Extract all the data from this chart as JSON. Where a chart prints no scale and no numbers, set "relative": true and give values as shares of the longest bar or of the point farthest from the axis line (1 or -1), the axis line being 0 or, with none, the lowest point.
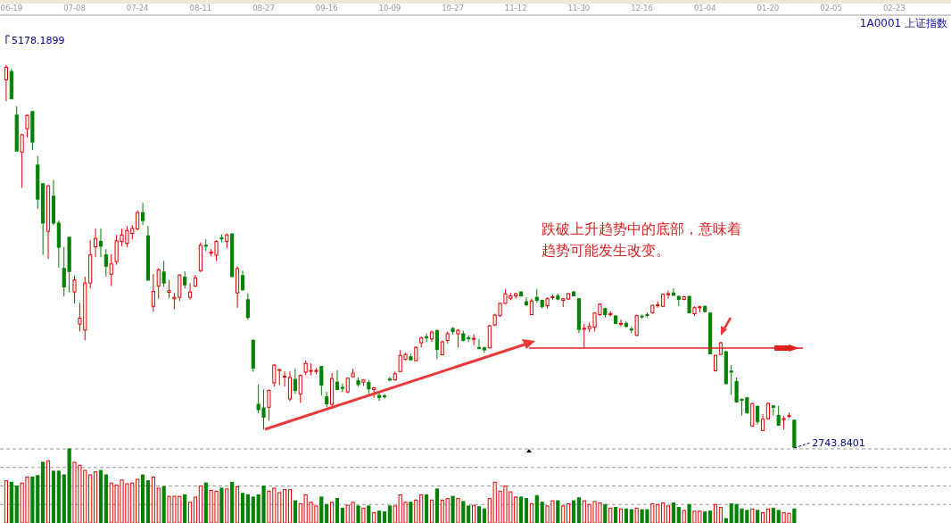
{
  "chart_data": [
    {
      "type": "candlestick",
      "title": "1A0001 上证指数",
      "categories": [
        null,
        "06-19",
        null,
        null,
        null,
        null,
        null,
        null,
        null,
        null,
        null,
        null,
        null,
        "07-08",
        null,
        null,
        null,
        null,
        null,
        null,
        null,
        null,
        null,
        null,
        null,
        "07-24",
        null,
        null,
        null,
        null,
        null,
        null,
        null,
        null,
        null,
        null,
        null,
        "08-11",
        null,
        null,
        null,
        null,
        null,
        null,
        null,
        null,
        null,
        null,
        null,
        "08-27",
        null,
        null,
        null,
        null,
        null,
        null,
        null,
        null,
        null,
        null,
        null,
        "09-16",
        null,
        null,
        null,
        null,
        null,
        null,
        null,
        null,
        null,
        null,
        null,
        "10-09",
        null,
        null,
        null,
        null,
        null,
        null,
        null,
        null,
        null,
        null,
        null,
        "10-27",
        null,
        null,
        null,
        null,
        null,
        null,
        null,
        null,
        null,
        null,
        null,
        "11-12",
        null,
        null,
        null,
        null,
        null,
        null,
        null,
        null,
        null,
        null,
        null,
        "11-30",
        null,
        null,
        null,
        null,
        null,
        null,
        null,
        null,
        null,
        null,
        null,
        "12-16",
        null,
        null,
        null,
        null,
        null,
        null,
        null,
        null,
        null,
        null,
        null,
        "01-04",
        null,
        null,
        null,
        null,
        null,
        null,
        null,
        null,
        null,
        null,
        null,
        "01-20",
        null,
        null,
        null,
        null,
        null,
        null,
        null,
        null,
        null,
        null,
        null,
        "02-05",
        null,
        null,
        null,
        null,
        null,
        null,
        null,
        null,
        null,
        null,
        null,
        "02-23",
        null,
        null,
        null,
        null,
        null,
        null,
        null,
        null,
        null,
        null,
        null
      ],
      "ohlc": [
        [
          5085,
          5178.1899,
          4949,
          5165
        ],
        [
          5138,
          5154,
          4965,
          4965
        ],
        [
          4861,
          4917,
          4632,
          4632
        ],
        [
          4626,
          4742,
          4398,
          4736
        ],
        [
          4774,
          4864,
          4719,
          4859
        ],
        [
          4883,
          4889,
          4638,
          4689
        ],
        [
          4543,
          4600,
          4265,
          4326
        ],
        [
          4424,
          4430,
          3972,
          4174
        ],
        [
          4122,
          4416,
          3948,
          4411
        ],
        [
          4345,
          4449,
          4161,
          4174
        ],
        [
          4174,
          4190,
          3891,
          4020
        ],
        [
          3885,
          4023,
          3708,
          3768
        ],
        [
          4084,
          4084,
          3734,
          3866
        ],
        [
          3736,
          3840,
          3664,
          3812
        ],
        [
          3532,
          3668,
          3485,
          3570
        ],
        [
          3494,
          3834,
          3428,
          3793
        ],
        [
          3793,
          4065,
          3759,
          3972
        ],
        [
          4023,
          4140,
          3957,
          4076
        ],
        [
          4057,
          4140,
          3957,
          4027
        ],
        [
          3972,
          4008,
          3834,
          3900
        ],
        [
          3849,
          3976,
          3774,
          3914
        ],
        [
          3929,
          4099,
          3910,
          4061
        ],
        [
          4057,
          4137,
          4027,
          4099
        ],
        [
          4046,
          4156,
          4020,
          4127
        ],
        [
          4108,
          4161,
          4071,
          4140
        ],
        [
          4137,
          4254,
          4127,
          4241
        ],
        [
          4241,
          4303,
          4161,
          4190
        ],
        [
          4093,
          4156,
          3806,
          3812
        ],
        [
          3645,
          3849,
          3611,
          3740
        ],
        [
          3774,
          3885,
          3693,
          3878
        ],
        [
          3863,
          3934,
          3768,
          3793
        ],
        [
          3734,
          3812,
          3698,
          3744
        ],
        [
          3693,
          3730,
          3626,
          3702
        ],
        [
          3702,
          3849,
          3679,
          3844
        ],
        [
          3831,
          3868,
          3759,
          3781
        ],
        [
          3702,
          3793,
          3687,
          3736
        ],
        [
          3774,
          3844,
          3768,
          3825
        ],
        [
          3872,
          4052,
          3863,
          4033
        ],
        [
          4033,
          4071,
          3995,
          4027
        ],
        [
          3986,
          4008,
          3963,
          3989
        ],
        [
          3970,
          4065,
          3933,
          4057
        ],
        [
          4080,
          4103,
          4052,
          4076
        ],
        [
          4057,
          4108,
          4014,
          4099
        ],
        [
          4105,
          4108,
          3831,
          3834
        ],
        [
          3730,
          3900,
          3636,
          3885
        ],
        [
          3840,
          3872,
          3744,
          3749
        ],
        [
          3687,
          3727,
          3560,
          3574
        ],
        [
          3428,
          3437,
          3229,
          3252
        ],
        [
          3022,
          3148,
          2965,
          2988
        ],
        [
          2999,
          3116,
          2861,
          2940
        ],
        [
          3003,
          3116,
          2918,
          3110
        ],
        [
          3158,
          3277,
          3135,
          3271
        ],
        [
          3239,
          3243,
          3144,
          3243
        ],
        [
          3197,
          3230,
          3135,
          3201
        ],
        [
          3056,
          3230,
          3041,
          3192
        ],
        [
          3180,
          3248,
          3088,
          3110
        ],
        [
          3088,
          3211,
          3031,
          3205
        ],
        [
          3226,
          3301,
          3207,
          3282
        ],
        [
          3233,
          3282,
          3207,
          3237
        ],
        [
          3231,
          3252,
          3214,
          3237
        ],
        [
          3262,
          3262,
          3078,
          3144
        ],
        [
          3069,
          3101,
          3003,
          3025
        ],
        [
          3022,
          3220,
          3003,
          3186
        ],
        [
          3163,
          3239,
          3112,
          3116
        ],
        [
          3129,
          3154,
          3101,
          3126
        ],
        [
          3101,
          3192,
          3092,
          3188
        ],
        [
          3197,
          3248,
          3192,
          3220
        ],
        [
          3173,
          3192,
          3135,
          3148
        ],
        [
          3163,
          3182,
          3139,
          3177
        ],
        [
          3160,
          3177,
          3088,
          3120
        ],
        [
          3116,
          3131,
          3063,
          3127
        ],
        [
          3078,
          3092,
          3044,
          3065
        ],
        [
          3075,
          3088,
          3059,
          3073
        ],
        [
          3182,
          3196,
          3167,
          3178
        ],
        [
          3177,
          3230,
          3173,
          3216
        ],
        [
          3230,
          3366,
          3226,
          3333
        ],
        [
          3309,
          3349,
          3301,
          3339
        ],
        [
          3324,
          3343,
          3301,
          3305
        ],
        [
          3299,
          3390,
          3296,
          3384
        ],
        [
          3413,
          3453,
          3384,
          3443
        ],
        [
          3451,
          3471,
          3419,
          3445
        ],
        [
          3437,
          3490,
          3419,
          3481
        ],
        [
          3490,
          3498,
          3311,
          3371
        ],
        [
          3337,
          3428,
          3333,
          3419
        ],
        [
          3428,
          3485,
          3409,
          3471
        ],
        [
          3504,
          3513,
          3466,
          3485
        ],
        [
          3470,
          3500,
          3384,
          3492
        ],
        [
          3470,
          3490,
          3422,
          3428
        ],
        [
          3445,
          3460,
          3419,
          3441
        ],
        [
          3437,
          3466,
          3396,
          3441
        ],
        [
          3383,
          3437,
          3371,
          3379
        ],
        [
          3381,
          3388,
          3349,
          3368
        ],
        [
          3381,
          3526,
          3377,
          3521
        ],
        [
          3526,
          3598,
          3519,
          3589
        ],
        [
          3585,
          3668,
          3579,
          3664
        ],
        [
          3664,
          3753,
          3660,
          3725
        ],
        [
          3696,
          3730,
          3683,
          3711
        ],
        [
          3711,
          3730,
          3693,
          3725
        ],
        [
          3736,
          3740,
          3708,
          3711
        ],
        [
          3674,
          3702,
          3645,
          3655
        ],
        [
          3592,
          3693,
          3589,
          3679
        ],
        [
          3702,
          3755,
          3668,
          3683
        ],
        [
          3683,
          3687,
          3632,
          3642
        ],
        [
          3649,
          3702,
          3632,
          3693
        ],
        [
          3702,
          3721,
          3687,
          3706
        ],
        [
          3710,
          3725,
          3683,
          3691
        ],
        [
          3683,
          3696,
          3640,
          3693
        ],
        [
          3691,
          3730,
          3687,
          3725
        ],
        [
          3736,
          3744,
          3708,
          3711
        ],
        [
          3693,
          3693,
          3475,
          3498
        ],
        [
          3500,
          3532,
          3381,
          3505
        ],
        [
          3504,
          3541,
          3481,
          3517
        ],
        [
          3513,
          3607,
          3485,
          3602
        ],
        [
          3592,
          3664,
          3585,
          3659
        ],
        [
          3630,
          3636,
          3573,
          3592
        ],
        [
          3592,
          3613,
          3579,
          3598
        ],
        [
          3583,
          3589,
          3532,
          3536
        ],
        [
          3532,
          3560,
          3519,
          3536
        ],
        [
          3536,
          3551,
          3509,
          3517
        ],
        [
          3500,
          3517,
          3475,
          3498
        ],
        [
          3460,
          3592,
          3456,
          3585
        ],
        [
          3583,
          3592,
          3566,
          3579
        ],
        [
          3592,
          3604,
          3575,
          3589
        ],
        [
          3604,
          3655,
          3598,
          3651
        ],
        [
          3651,
          3677,
          3636,
          3655
        ],
        [
          3645,
          3727,
          3642,
          3721
        ],
        [
          3721,
          3744,
          3696,
          3725
        ],
        [
          3730,
          3759,
          3711,
          3715
        ],
        [
          3708,
          3711,
          3645,
          3689
        ],
        [
          3689,
          3711,
          3683,
          3706
        ],
        [
          3708,
          3711,
          3602,
          3604
        ],
        [
          3598,
          3645,
          3583,
          3636
        ],
        [
          3638,
          3649,
          3607,
          3642
        ],
        [
          3645,
          3649,
          3607,
          3611
        ],
        [
          3602,
          3602,
          3339,
          3343
        ],
        [
          3235,
          3337,
          3230,
          3333
        ],
        [
          3339,
          3418,
          3337,
          3413
        ],
        [
          3356,
          3362,
          3148,
          3154
        ],
        [
          3233,
          3271,
          3082,
          3226
        ],
        [
          3167,
          3192,
          3031,
          3037
        ],
        [
          3054,
          3059,
          2950,
          3048
        ],
        [
          3063,
          3069,
          2961,
          2969
        ],
        [
          2884,
          3031,
          2880,
          3027
        ],
        [
          3008,
          3016,
          2893,
          2912
        ],
        [
          2855,
          2959,
          2852,
          2927
        ],
        [
          2931,
          3035,
          2923,
          3027
        ],
        [
          3012,
          3016,
          2950,
          3003
        ],
        [
          2950,
          3012,
          2886,
          2889
        ],
        [
          2927,
          2946,
          2861,
          2931
        ],
        [
          2946,
          2969,
          2937,
          2950
        ],
        [
          2921,
          2921,
          2743.8401,
          2748
        ],
        null,
        null,
        null,
        null,
        null,
        null,
        null,
        null,
        null,
        null,
        null,
        null,
        null,
        null,
        null,
        null,
        null,
        null,
        null,
        null,
        null,
        null,
        null,
        null,
        null,
        null,
        null,
        null,
        null,
        null
      ],
      "colors": [
        "#dd0000",
        "#008000",
        "#008000",
        "#dd0000",
        "#dd0000",
        "#008000",
        "#008000",
        "#008000",
        "#dd0000",
        "#008000",
        "#008000",
        "#008000",
        "#008000",
        "#dd0000",
        "#dd0000",
        "#dd0000",
        "#dd0000",
        "#dd0000",
        "#008000",
        "#008000",
        "#dd0000",
        "#dd0000",
        "#dd0000",
        "#dd0000",
        "#dd0000",
        "#dd0000",
        "#008000",
        "#008000",
        "#dd0000",
        "#dd0000",
        "#008000",
        "#dd0000",
        "#dd0000",
        "#dd0000",
        "#008000",
        "#dd0000",
        "#dd0000",
        "#dd0000",
        "#008000",
        "#dd0000",
        "#dd0000",
        "#008000",
        "#dd0000",
        "#008000",
        "#dd0000",
        "#008000",
        "#008000",
        "#008000",
        "#008000",
        "#008000",
        "#dd0000",
        "#dd0000",
        "#dd0000",
        "#dd0000",
        "#dd0000",
        "#008000",
        "#dd0000",
        "#dd0000",
        "#dd0000",
        "#dd0000",
        "#008000",
        "#008000",
        "#dd0000",
        "#008000",
        "#008000",
        "#dd0000",
        "#dd0000",
        "#008000",
        "#dd0000",
        "#008000",
        "#dd0000",
        "#008000",
        "#008000",
        "#008000",
        "#dd0000",
        "#dd0000",
        "#dd0000",
        "#008000",
        "#dd0000",
        "#dd0000",
        "#008000",
        "#dd0000",
        "#008000",
        "#dd0000",
        "#dd0000",
        "#008000",
        "#dd0000",
        "#008000",
        "#008000",
        "#dd0000",
        "#008000",
        "#008000",
        "#dd0000",
        "#dd0000",
        "#dd0000",
        "#dd0000",
        "#dd0000",
        "#dd0000",
        "#008000",
        "#008000",
        "#dd0000",
        "#008000",
        "#008000",
        "#dd0000",
        "#dd0000",
        "#008000",
        "#dd0000",
        "#dd0000",
        "#008000",
        "#008000",
        "#dd0000",
        "#dd0000",
        "#dd0000",
        "#dd0000",
        "#008000",
        "#dd0000",
        "#008000",
        "#dd0000",
        "#008000",
        "#008000",
        "#dd0000",
        "#008000",
        "#008000",
        "#dd0000",
        "#dd0000",
        "#dd0000",
        "#dd0000",
        "#008000",
        "#008000",
        "#dd0000",
        "#008000",
        "#dd0000",
        "#dd0000",
        "#008000",
        "#008000",
        "#dd0000",
        "#dd0000",
        "#008000",
        "#008000",
        "#008000",
        "#008000",
        "#008000",
        "#dd0000",
        "#008000",
        "#dd0000",
        "#dd0000",
        "#008000",
        "#008000",
        "#dd0000",
        "#dd0000",
        "#008000",
        null,
        null,
        null,
        null,
        null,
        null,
        null,
        null,
        null,
        null,
        null,
        null,
        null,
        null,
        null,
        null,
        null,
        null,
        null,
        null,
        null,
        null,
        null,
        null,
        null,
        null,
        null,
        null,
        null,
        null
      ],
      "annotations": [
        "跌破上升趋势中的底部，意味着",
        "趋势可能发生改变。",
        "5178.1899",
        "2743.8401"
      ]
    },
    {
      "type": "bar",
      "relative": true,
      "grid": true,
      "categories": [
        null,
        null,
        null,
        null,
        null,
        null,
        null,
        null,
        null,
        null,
        null,
        null,
        null,
        null,
        null,
        null,
        null,
        null,
        null,
        null,
        null,
        null,
        null,
        null,
        null,
        null,
        null,
        null,
        null,
        null,
        null,
        null,
        null,
        null,
        null,
        null,
        null,
        null,
        null,
        null,
        null,
        null,
        null,
        null,
        null,
        null,
        null,
        null,
        null,
        null,
        null,
        null,
        null,
        null,
        null,
        null,
        null,
        null,
        null,
        null,
        null,
        null,
        null,
        null,
        null,
        null,
        null,
        null,
        null,
        null,
        null,
        null,
        null,
        null,
        null,
        null,
        null,
        null,
        null,
        null,
        null,
        null,
        null,
        null,
        null,
        null,
        null,
        null,
        null,
        null,
        null,
        null,
        null,
        null,
        null,
        null,
        null,
        null,
        null,
        null,
        null,
        null,
        null,
        null,
        null,
        null,
        null,
        null,
        null,
        null,
        null,
        null,
        null,
        null,
        null,
        null,
        null,
        null,
        null,
        null,
        null,
        null,
        null,
        null,
        null,
        null,
        null,
        null,
        null,
        null,
        null,
        null,
        null,
        null,
        null,
        null,
        null,
        null,
        null,
        null,
        null,
        null,
        null,
        null,
        null,
        null,
        null,
        null,
        null,
        null,
        null,
        null,
        null,
        null,
        null,
        null,
        null,
        null,
        null,
        null,
        null,
        null,
        null,
        null,
        null,
        null,
        null,
        null,
        null,
        null,
        null,
        null,
        null,
        null,
        null,
        null,
        null,
        null,
        null,
        null,
        null
      ],
      "values": [
        0.57,
        0.55,
        0.5,
        0.54,
        0.62,
        0.62,
        0.64,
        0.82,
        0.84,
        0.7,
        0.7,
        0.65,
        1,
        0.82,
        0.78,
        0.71,
        0.65,
        0.69,
        0.71,
        0.65,
        0.54,
        0.51,
        0.58,
        0.53,
        0.54,
        0.59,
        0.65,
        0.57,
        0.62,
        0.47,
        0.49,
        0.36,
        0.36,
        0.36,
        0.38,
        0.28,
        0.35,
        0.5,
        0.54,
        0.44,
        0.43,
        0.47,
        0.46,
        0.55,
        0.49,
        0.4,
        0.38,
        0.35,
        0.38,
        0.5,
        0.43,
        0.47,
        0.41,
        0.45,
        0.45,
        0.3,
        0.26,
        0.38,
        0.28,
        0.23,
        0.35,
        0.25,
        0.28,
        0.33,
        0.2,
        0.24,
        0.28,
        0.23,
        0.2,
        0.23,
        0.14,
        0.16,
        0.15,
        0.23,
        0.23,
        0.38,
        0.28,
        0.28,
        0.31,
        0.38,
        0.38,
        0.31,
        0.46,
        0.31,
        0.33,
        0.36,
        0.33,
        0.29,
        0.23,
        0.24,
        0.22,
        0.19,
        0.33,
        0.55,
        0.43,
        0.5,
        0.42,
        0.35,
        0.35,
        0.33,
        0.26,
        0.37,
        0.28,
        0.23,
        0.3,
        0.3,
        0.23,
        0.26,
        0.3,
        0.34,
        0.3,
        0.25,
        0.29,
        0.27,
        0.25,
        0.2,
        0.21,
        0.19,
        0.19,
        0.18,
        0.2,
        0.18,
        0.18,
        0.26,
        0.25,
        0.27,
        0.23,
        0.27,
        0.21,
        0.17,
        0.25,
        0.16,
        0.16,
        0.15,
        0.16,
        0.25,
        0.21,
        0.06,
        0.26,
        0.25,
        0.19,
        0.17,
        0.19,
        0.17,
        0.14,
        0.19,
        0.2,
        0.17,
        0.14,
        0.13,
        0.19,
        null,
        null,
        null,
        null,
        null,
        null,
        null,
        null,
        null,
        null,
        null,
        null,
        null,
        null,
        null,
        null,
        null,
        null,
        null,
        null,
        null,
        null,
        null,
        null,
        null,
        null,
        null,
        null,
        null,
        null
      ],
      "colors": [
        "#dd0000",
        "#008000",
        "#008000",
        "#dd0000",
        "#dd0000",
        "#008000",
        "#008000",
        "#008000",
        "#dd0000",
        "#008000",
        "#008000",
        "#008000",
        "#008000",
        "#dd0000",
        "#dd0000",
        "#dd0000",
        "#dd0000",
        "#dd0000",
        "#008000",
        "#008000",
        "#dd0000",
        "#dd0000",
        "#dd0000",
        "#dd0000",
        "#dd0000",
        "#dd0000",
        "#008000",
        "#008000",
        "#dd0000",
        "#dd0000",
        "#008000",
        "#dd0000",
        "#dd0000",
        "#dd0000",
        "#008000",
        "#dd0000",
        "#dd0000",
        "#dd0000",
        "#008000",
        "#dd0000",
        "#dd0000",
        "#008000",
        "#dd0000",
        "#008000",
        "#dd0000",
        "#008000",
        "#008000",
        "#008000",
        "#008000",
        "#008000",
        "#dd0000",
        "#dd0000",
        "#dd0000",
        "#dd0000",
        "#dd0000",
        "#008000",
        "#dd0000",
        "#dd0000",
        "#dd0000",
        "#dd0000",
        "#008000",
        "#008000",
        "#dd0000",
        "#008000",
        "#008000",
        "#dd0000",
        "#dd0000",
        "#008000",
        "#dd0000",
        "#008000",
        "#dd0000",
        "#008000",
        "#008000",
        "#008000",
        "#dd0000",
        "#dd0000",
        "#dd0000",
        "#008000",
        "#dd0000",
        "#dd0000",
        "#008000",
        "#dd0000",
        "#008000",
        "#dd0000",
        "#dd0000",
        "#008000",
        "#dd0000",
        "#008000",
        "#008000",
        "#dd0000",
        "#008000",
        "#008000",
        "#dd0000",
        "#dd0000",
        "#dd0000",
        "#dd0000",
        "#dd0000",
        "#dd0000",
        "#008000",
        "#008000",
        "#dd0000",
        "#008000",
        "#008000",
        "#dd0000",
        "#dd0000",
        "#008000",
        "#dd0000",
        "#dd0000",
        "#008000",
        "#008000",
        "#dd0000",
        "#dd0000",
        "#dd0000",
        "#dd0000",
        "#008000",
        "#dd0000",
        "#008000",
        "#dd0000",
        "#008000",
        "#008000",
        "#dd0000",
        "#008000",
        "#008000",
        "#dd0000",
        "#dd0000",
        "#dd0000",
        "#dd0000",
        "#008000",
        "#008000",
        "#dd0000",
        "#008000",
        "#dd0000",
        "#dd0000",
        "#008000",
        "#008000",
        "#dd0000",
        "#dd0000",
        "#008000",
        "#008000",
        "#008000",
        "#008000",
        "#008000",
        "#dd0000",
        "#008000",
        "#dd0000",
        "#dd0000",
        "#008000",
        "#008000",
        "#dd0000",
        "#dd0000",
        "#008000",
        null,
        null,
        null,
        null,
        null,
        null,
        null,
        null,
        null,
        null,
        null,
        null,
        null,
        null,
        null,
        null,
        null,
        null,
        null,
        null,
        null,
        null,
        null,
        null,
        null,
        null,
        null,
        null,
        null,
        null
      ]
    }
  ]
}
